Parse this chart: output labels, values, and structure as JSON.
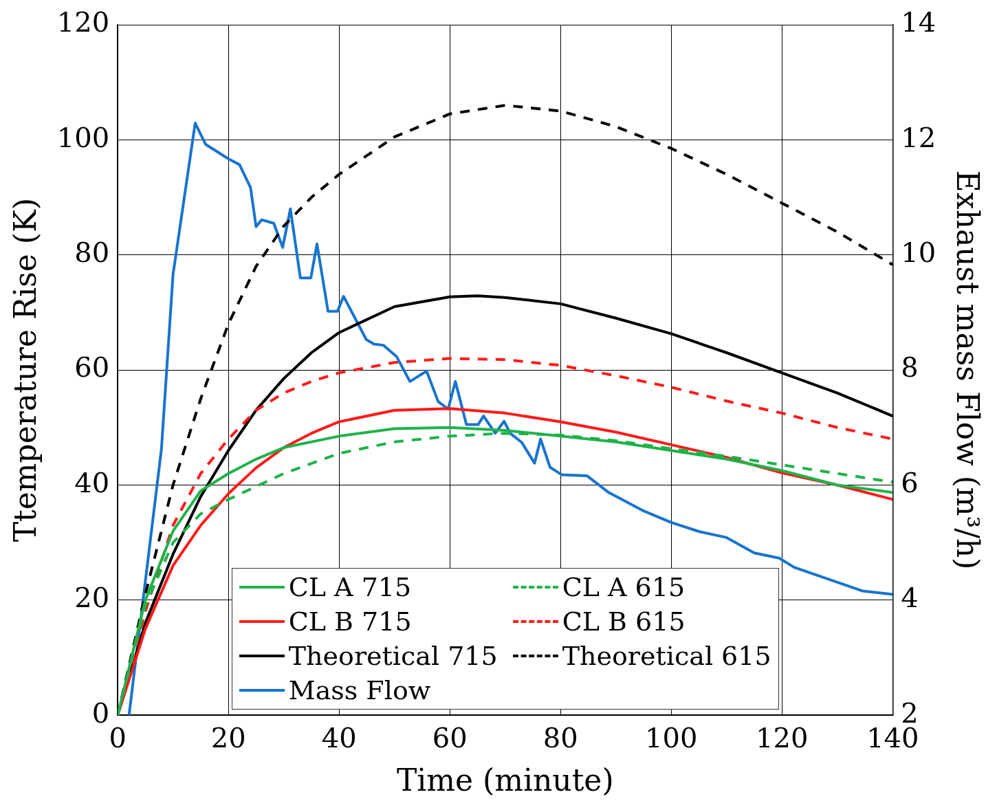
{
  "chart_data": {
    "type": "line",
    "xlabel": "Time (minute)",
    "ylabel": "Ttemperature Rise (K)",
    "y2label": "Exhaust mass Flow (m³/h)",
    "xlim": [
      0,
      140
    ],
    "xticks": [
      0,
      20,
      40,
      60,
      80,
      100,
      120,
      140
    ],
    "ylim": [
      0,
      120
    ],
    "yticks": [
      0,
      20,
      40,
      60,
      80,
      100,
      120
    ],
    "y2lim": [
      2,
      14
    ],
    "y2ticks": [
      2,
      4,
      6,
      8,
      10,
      12,
      14
    ],
    "grid": true,
    "legend": "bottom",
    "marker": "none",
    "series": [
      {
        "name": "CL A 715",
        "color": "#1fb24a",
        "line_style": "solid",
        "x": [
          0,
          5,
          10,
          15,
          20,
          25,
          30,
          40,
          50,
          60,
          70,
          80,
          90,
          100,
          110,
          120,
          130,
          140
        ],
        "values": [
          0,
          20,
          32,
          39,
          42,
          44.5,
          46.5,
          48.5,
          49.8,
          50,
          49.5,
          48.5,
          47.5,
          46,
          44.5,
          42.5,
          40,
          38.7
        ]
      },
      {
        "name": "CL A 615",
        "color": "#1fb24a",
        "line_style": "dashed",
        "x": [
          0,
          5,
          10,
          15,
          20,
          30,
          40,
          50,
          60,
          70,
          80,
          90,
          100,
          110,
          120,
          130,
          140
        ],
        "values": [
          0,
          19,
          30,
          35,
          37.5,
          42,
          45.5,
          47.5,
          48.5,
          49,
          48.7,
          47.7,
          46.3,
          45,
          43.5,
          42,
          40.5
        ]
      },
      {
        "name": "CL B 715",
        "color": "#ff1a1a",
        "line_style": "solid",
        "x": [
          0,
          5,
          10,
          15,
          20,
          25,
          30,
          35,
          40,
          50,
          60,
          70,
          80,
          90,
          100,
          110,
          120,
          130,
          140
        ],
        "values": [
          0,
          15,
          26,
          33,
          38.5,
          43,
          46.5,
          49,
          51,
          53,
          53.3,
          52.5,
          51,
          49.2,
          47,
          44.8,
          42.1,
          40,
          37.5
        ]
      },
      {
        "name": "CL B 615",
        "color": "#ff1a1a",
        "line_style": "dashed",
        "x": [
          0,
          5,
          10,
          15,
          20,
          25,
          30,
          35,
          40,
          50,
          60,
          70,
          80,
          90,
          100,
          110,
          120,
          130,
          140
        ],
        "values": [
          0,
          18,
          33,
          42,
          48,
          53,
          56,
          58,
          59.5,
          61.3,
          62,
          61.8,
          60.8,
          59,
          57,
          54.6,
          52.5,
          50,
          48
        ]
      },
      {
        "name": "Theoretical 715",
        "color": "#000000",
        "line_style": "solid",
        "x": [
          0,
          5,
          10,
          15,
          20,
          25,
          30,
          35,
          40,
          50,
          60,
          65,
          70,
          80,
          90,
          100,
          110,
          120,
          130,
          140
        ],
        "values": [
          0,
          16,
          28,
          38,
          46,
          53,
          58.5,
          63,
          66.5,
          71,
          72.7,
          72.9,
          72.6,
          71.5,
          69,
          66.3,
          63,
          59.5,
          56,
          52
        ]
      },
      {
        "name": "Theoretical 615",
        "color": "#000000",
        "line_style": "dashed",
        "x": [
          0,
          5,
          10,
          15,
          20,
          25,
          30,
          35,
          40,
          50,
          60,
          70,
          80,
          90,
          100,
          110,
          120,
          130,
          140
        ],
        "values": [
          0,
          21,
          40,
          55,
          68,
          78,
          85,
          90,
          94,
          100.5,
          104.5,
          106,
          105,
          102.3,
          98.5,
          94,
          89,
          84,
          78.3
        ]
      },
      {
        "name": "Mass Flow",
        "color": "#1874cd",
        "line_style": "solid",
        "axis": "y2",
        "x": [
          2.05,
          7.9,
          10,
          14,
          15.9,
          20,
          22,
          24,
          25,
          26,
          28.2,
          29.8,
          31.2,
          33,
          34.9,
          36,
          38,
          39.7,
          40.8,
          44.9,
          46.3,
          48,
          50.4,
          52.8,
          55.8,
          57.9,
          59.7,
          61,
          63,
          65.1,
          66.1,
          68.2,
          69.8,
          70.9,
          73,
          75.3,
          76.4,
          78.1,
          80.2,
          84.8,
          88.7,
          94.8,
          100,
          105.1,
          109.9,
          115,
          119.5,
          122.2,
          134.5,
          140
        ],
        "values": [
          2,
          6.62,
          9.66,
          12.29,
          11.92,
          11.67,
          11.57,
          11.17,
          10.49,
          10.61,
          10.55,
          10.13,
          10.8,
          9.6,
          9.6,
          10.19,
          9.02,
          9.02,
          9.28,
          8.53,
          8.45,
          8.43,
          8.23,
          7.8,
          7.98,
          7.45,
          7.32,
          7.8,
          7.05,
          7.05,
          7.2,
          6.9,
          7.11,
          6.9,
          6.74,
          6.38,
          6.8,
          6.31,
          6.18,
          6.16,
          5.87,
          5.56,
          5.35,
          5.19,
          5.09,
          4.82,
          4.73,
          4.57,
          4.16,
          4.1
        ]
      }
    ]
  }
}
